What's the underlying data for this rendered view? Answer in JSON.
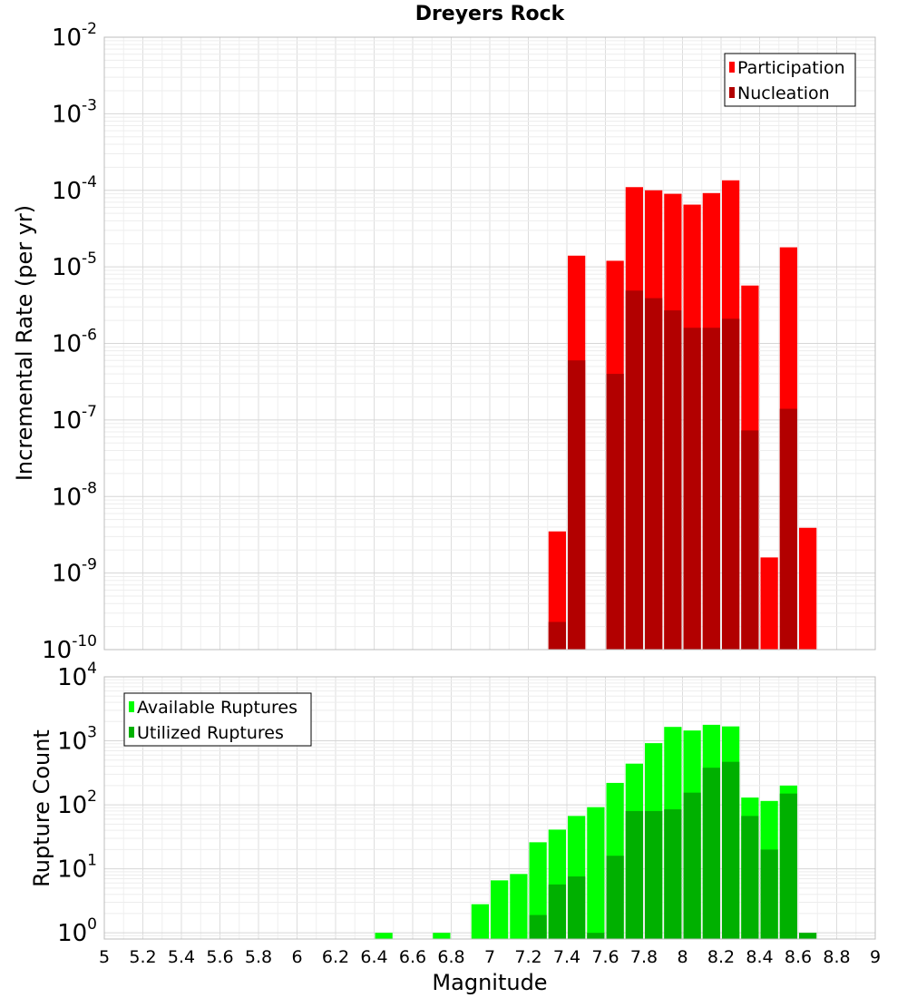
{
  "chart_data": [
    {
      "type": "bar",
      "title": "Dreyers Rock",
      "ylabel": "Incremental Rate (per yr)",
      "xlabel": "",
      "x_range": [
        5,
        9
      ],
      "y_scale": "log",
      "y_range": [
        1e-10,
        0.01
      ],
      "y_ticks": [
        {
          "base": "10",
          "exp": "-2",
          "value": 0.01
        },
        {
          "base": "10",
          "exp": "-3",
          "value": 0.001
        },
        {
          "base": "10",
          "exp": "-4",
          "value": 0.0001
        },
        {
          "base": "10",
          "exp": "-5",
          "value": 1e-05
        },
        {
          "base": "10",
          "exp": "-6",
          "value": 1e-06
        },
        {
          "base": "10",
          "exp": "-7",
          "value": 1e-07
        },
        {
          "base": "10",
          "exp": "-8",
          "value": 1e-08
        },
        {
          "base": "10",
          "exp": "-9",
          "value": 1e-09
        },
        {
          "base": "10",
          "exp": "-10",
          "value": 1e-10
        }
      ],
      "grid": true,
      "legend_position": "top-right",
      "series": [
        {
          "name": "Participation",
          "color": "#ff0000",
          "x": [
            7.35,
            7.45,
            7.65,
            7.75,
            7.85,
            7.95,
            8.05,
            8.15,
            8.25,
            8.35,
            8.45,
            8.55,
            8.65
          ],
          "values": [
            3.5e-09,
            1.4e-05,
            1.2e-05,
            0.00011,
            0.0001,
            9e-05,
            6.5e-05,
            9.2e-05,
            0.000135,
            5.7e-06,
            1.6e-09,
            1.8e-05,
            3.9e-09
          ]
        },
        {
          "name": "Nucleation",
          "color": "#b20000",
          "x": [
            7.35,
            7.45,
            7.65,
            7.75,
            7.85,
            7.95,
            8.05,
            8.15,
            8.25,
            8.35,
            8.55
          ],
          "values": [
            2.3e-10,
            6e-07,
            4e-07,
            4.9e-06,
            3.9e-06,
            2.7e-06,
            1.6e-06,
            1.6e-06,
            2.1e-06,
            7.3e-08,
            1.4e-07
          ]
        }
      ]
    },
    {
      "type": "bar",
      "title": "",
      "ylabel": "Rupture Count",
      "xlabel": "Magnitude",
      "x_range": [
        5,
        9
      ],
      "x_ticks": [
        "5",
        "5.2",
        "5.4",
        "5.6",
        "5.8",
        "6",
        "6.2",
        "6.4",
        "6.6",
        "6.8",
        "7",
        "7.2",
        "7.4",
        "7.6",
        "7.8",
        "8",
        "8.2",
        "8.4",
        "8.6",
        "8.8",
        "9"
      ],
      "y_scale": "log",
      "y_range": [
        0.8,
        10000
      ],
      "y_ticks": [
        {
          "base": "10",
          "exp": "4",
          "value": 10000
        },
        {
          "base": "10",
          "exp": "3",
          "value": 1000
        },
        {
          "base": "10",
          "exp": "2",
          "value": 100
        },
        {
          "base": "10",
          "exp": "1",
          "value": 10
        },
        {
          "base": "10",
          "exp": "0",
          "value": 1
        }
      ],
      "grid": true,
      "legend_position": "top-left",
      "series": [
        {
          "name": "Available Ruptures",
          "color": "#00ff00",
          "x": [
            6.45,
            6.75,
            6.95,
            7.05,
            7.15,
            7.25,
            7.35,
            7.45,
            7.55,
            7.65,
            7.75,
            7.85,
            7.95,
            8.05,
            8.15,
            8.25,
            8.35,
            8.45,
            8.55
          ],
          "values": [
            1,
            1,
            2.8,
            6.6,
            8.3,
            26,
            41,
            67,
            92,
            220,
            440,
            920,
            1650,
            1450,
            1780,
            1680,
            130,
            115,
            200
          ]
        },
        {
          "name": "Utilized Ruptures",
          "color": "#00b000",
          "x": [
            7.25,
            7.35,
            7.45,
            7.55,
            7.65,
            7.75,
            7.85,
            7.95,
            8.05,
            8.15,
            8.25,
            8.35,
            8.45,
            8.55,
            8.65
          ],
          "values": [
            1.9,
            5.7,
            7.6,
            1,
            16,
            80,
            80,
            85,
            155,
            380,
            470,
            67,
            20,
            150,
            1
          ]
        }
      ]
    }
  ]
}
